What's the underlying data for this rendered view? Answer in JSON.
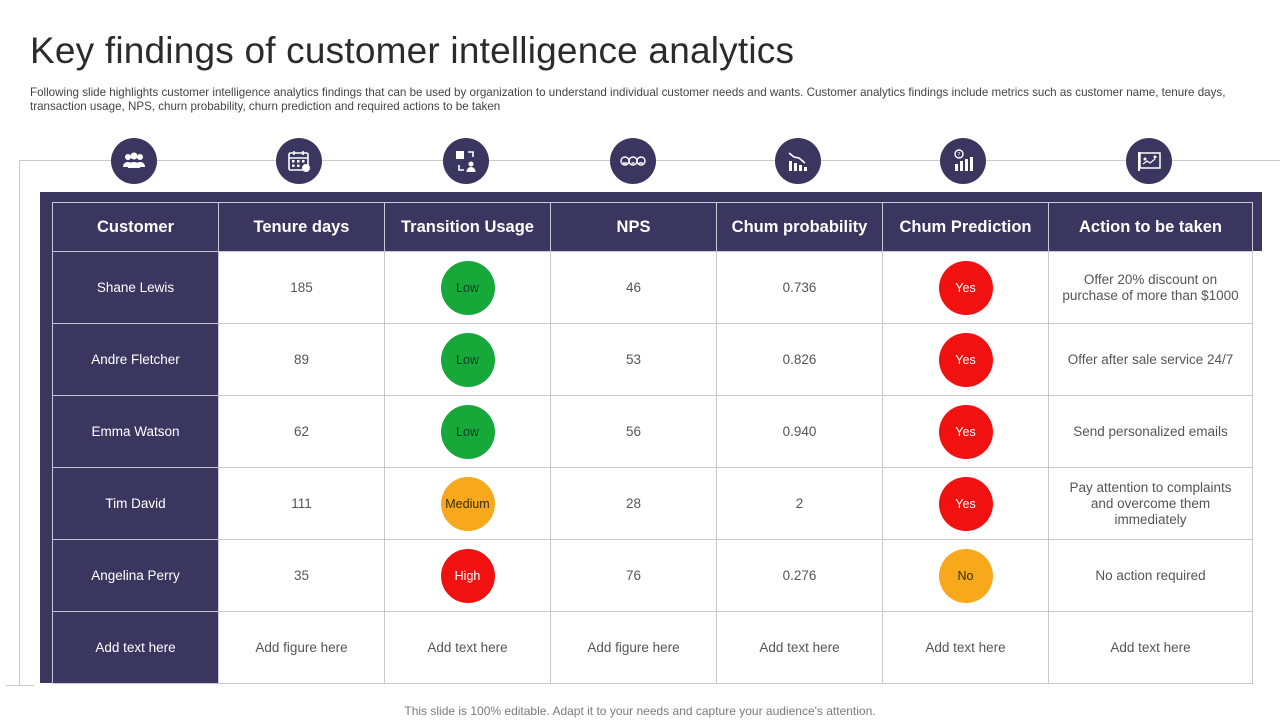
{
  "title": "Key findings of customer intelligence analytics",
  "subtitle": "Following slide highlights customer intelligence analytics findings that can be used by organization to understand individual customer needs and wants. Customer analytics findings include metrics such as customer name, tenure days, transaction usage, NPS, churn probability, churn prediction and required actions to be taken",
  "icons": [
    "users-icon",
    "calendar-icon",
    "transfer-icon",
    "emoji-faces-icon",
    "declining-chart-icon",
    "question-chart-icon",
    "presentation-board-icon"
  ],
  "colors": {
    "header": "#3b365f",
    "low": "#17a83a",
    "medium": "#f7a81b",
    "high": "#f21111"
  },
  "table": {
    "headers": [
      "Customer",
      "Tenure days",
      "Transition Usage",
      "NPS",
      "Chum probability",
      "Chum Prediction",
      "Action to be taken"
    ],
    "rows": [
      {
        "customer": "Shane Lewis",
        "tenure": "185",
        "usage": "Low",
        "nps": "46",
        "probability": "0.736",
        "prediction": "Yes",
        "action": "Offer 20% discount on purchase of more than $1000"
      },
      {
        "customer": "Andre Fletcher",
        "tenure": "89",
        "usage": "Low",
        "nps": "53",
        "probability": "0.826",
        "prediction": "Yes",
        "action": "Offer after sale service 24/7"
      },
      {
        "customer": "Emma Watson",
        "tenure": "62",
        "usage": "Low",
        "nps": "56",
        "probability": "0.940",
        "prediction": "Yes",
        "action": "Send personalized emails"
      },
      {
        "customer": "Tim David",
        "tenure": "111",
        "usage": "Medium",
        "nps": "28",
        "probability": "2",
        "prediction": "Yes",
        "action": "Pay attention to complaints and overcome them immediately"
      },
      {
        "customer": "Angelina Perry",
        "tenure": "35",
        "usage": "High",
        "nps": "76",
        "probability": "0.276",
        "prediction": "No",
        "action": "No action required"
      }
    ],
    "footer": [
      "Add text here",
      "Add figure here",
      "Add text here",
      "Add figure here",
      "Add text here",
      "Add text here",
      "Add text here"
    ]
  },
  "footnote": "This slide is 100% editable. Adapt it to your needs and capture your audience's attention."
}
